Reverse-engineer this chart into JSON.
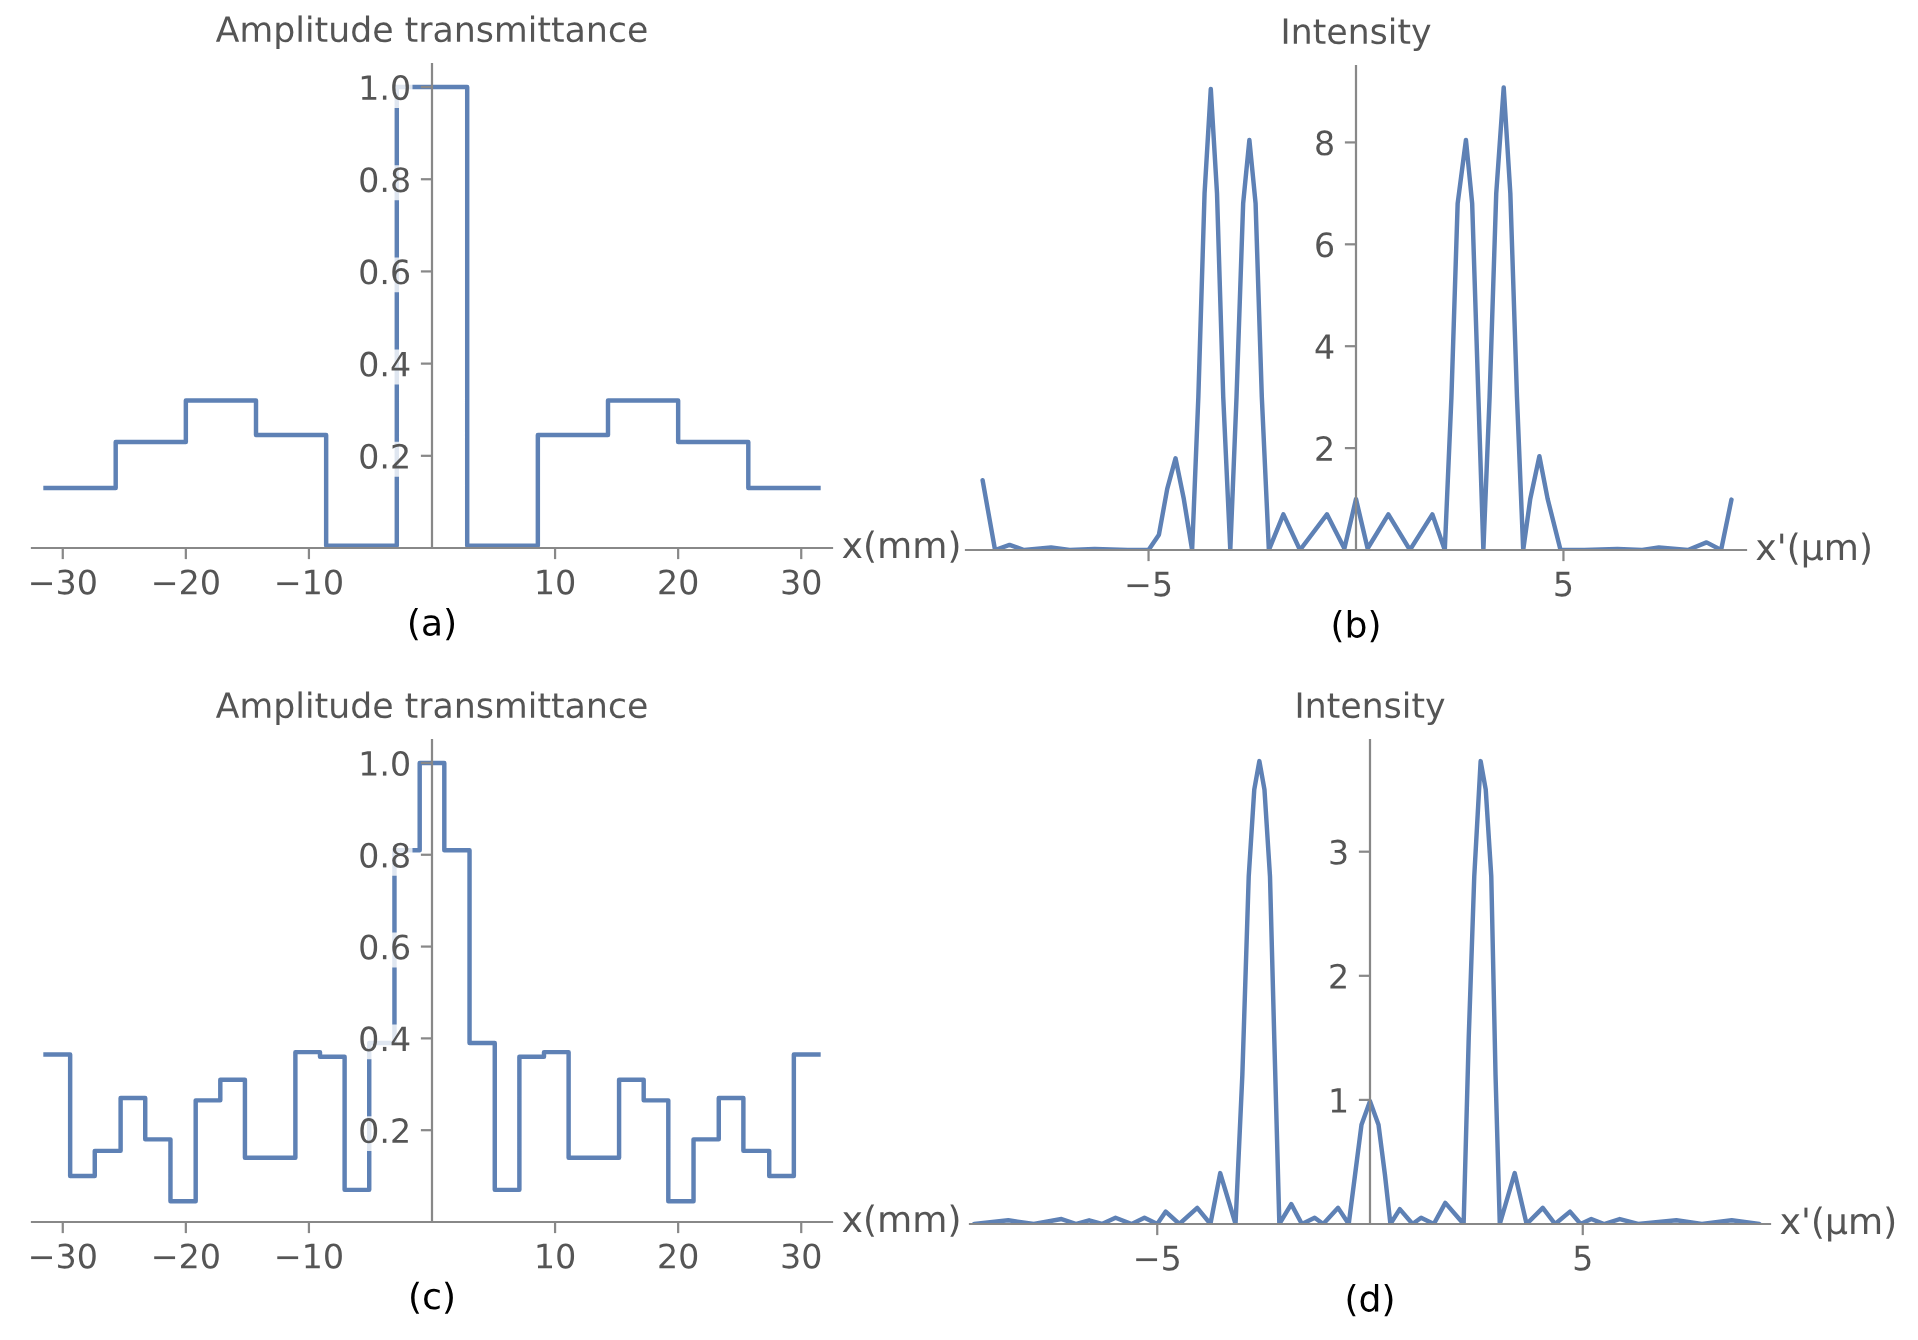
{
  "chart_data": [
    {
      "type": "step",
      "title": "Amplitude transmittance",
      "xlabel": "x(mm)",
      "annotations": [
        "(a)"
      ],
      "color": "#5e81b5",
      "x": [
        -31.4,
        -25.7,
        -20,
        -14.3,
        -8.6,
        -2.86,
        2.86,
        8.6,
        14.3,
        20,
        25.7,
        31.4
      ],
      "values": [
        0.13,
        0.23,
        0.32,
        0.245,
        0.005,
        1.0,
        0.005,
        0.245,
        0.32,
        0.23,
        0.13,
        0.13
      ],
      "xlim": [
        -32.5,
        32.5
      ],
      "ylim": [
        0,
        1.05
      ],
      "xticks": [
        {
          "value": -30,
          "label": "−30"
        },
        {
          "value": -20,
          "label": "−20"
        },
        {
          "value": -10,
          "label": "−10"
        },
        10,
        20,
        30
      ],
      "yticks": [
        0.2,
        0.4,
        0.6,
        0.8,
        {
          "value": 1,
          "label": "1.0"
        }
      ]
    },
    {
      "type": "line",
      "title": "Intensity",
      "xlabel": "x'(μm)",
      "annotations": [
        "(b)"
      ],
      "color": "#5e81b5",
      "x": [
        -9.0,
        -8.7,
        -8.35,
        -8.0,
        -7.35,
        -6.9,
        -6.3,
        -5.5,
        -5.0,
        -4.75,
        -4.55,
        -4.35,
        -4.15,
        -3.95,
        -3.8,
        -3.65,
        -3.5,
        -3.35,
        -3.2,
        -3.03,
        -2.88,
        -2.72,
        -2.57,
        -2.42,
        -2.27,
        -2.1,
        -1.75,
        -1.35,
        -0.7,
        -0.28,
        0.0,
        0.28,
        0.78,
        1.3,
        1.84,
        2.14,
        2.3,
        2.45,
        2.65,
        2.8,
        2.95,
        3.07,
        3.22,
        3.38,
        3.56,
        3.72,
        3.88,
        4.03,
        4.2,
        4.42,
        4.62,
        4.93,
        5.5,
        6.3,
        6.9,
        7.3,
        8.0,
        8.45,
        8.8,
        9.05
      ],
      "values": [
        1.37,
        0,
        0.1,
        0,
        0.05,
        0,
        0.02,
        0,
        0,
        0.3,
        1.2,
        1.8,
        1.0,
        0,
        3.0,
        7.0,
        9.05,
        7.0,
        3.0,
        0,
        3.0,
        6.8,
        8.05,
        6.8,
        3.0,
        0,
        0.7,
        0,
        0.7,
        0.03,
        1.0,
        0.03,
        0.7,
        0,
        0.7,
        0,
        3.0,
        6.8,
        8.05,
        6.8,
        3.0,
        0,
        3.0,
        7.0,
        9.08,
        7.0,
        3.0,
        0,
        1.0,
        1.84,
        1.0,
        0,
        0,
        0.02,
        0,
        0.05,
        0,
        0.15,
        0,
        0.99
      ],
      "xlim": [
        -9.4,
        9.4
      ],
      "ylim": [
        0,
        9.5
      ],
      "xticks": [
        {
          "value": -5,
          "label": "−5"
        },
        5
      ],
      "yticks": [
        2,
        4,
        6,
        8
      ]
    },
    {
      "type": "step",
      "title": "Amplitude transmittance",
      "xlabel": "x(mm)",
      "annotations": [
        "(c)"
      ],
      "color": "#5e81b5",
      "x": [
        -31.4,
        -29.4,
        -27.4,
        -25.3,
        -23.3,
        -21.25,
        -19.2,
        -17.2,
        -15.2,
        -13.15,
        -11.1,
        -9.1,
        -7.1,
        -5.1,
        -3.05,
        -1.0,
        1.0,
        3.05,
        5.1,
        7.1,
        9.1,
        11.1,
        13.15,
        15.2,
        17.2,
        19.2,
        21.25,
        23.3,
        25.3,
        27.4,
        29.4,
        31.4
      ],
      "values": [
        0.365,
        0.1,
        0.155,
        0.27,
        0.18,
        0.045,
        0.265,
        0.31,
        0.14,
        0.14,
        0.37,
        0.36,
        0.07,
        0.39,
        0.81,
        1.0,
        0.81,
        0.39,
        0.07,
        0.36,
        0.37,
        0.14,
        0.14,
        0.31,
        0.265,
        0.045,
        0.18,
        0.27,
        0.155,
        0.1,
        0.365,
        0.365
      ],
      "xlim": [
        -32.5,
        32.5
      ],
      "ylim": [
        0,
        1.05
      ],
      "xticks": [
        {
          "value": -30,
          "label": "−30"
        },
        {
          "value": -20,
          "label": "−20"
        },
        {
          "value": -10,
          "label": "−10"
        },
        10,
        20,
        30
      ],
      "yticks": [
        0.2,
        0.4,
        0.6,
        0.8,
        {
          "value": 1,
          "label": "1.0"
        }
      ]
    },
    {
      "type": "line",
      "title": "Intensity",
      "xlabel": "x'(μm)",
      "annotations": [
        "(d)"
      ],
      "color": "#5e81b5",
      "x": [
        -9.3,
        -8.5,
        -7.9,
        -7.25,
        -6.9,
        -6.6,
        -6.3,
        -5.98,
        -5.6,
        -5.3,
        -5.0,
        -4.8,
        -4.48,
        -4.06,
        -3.75,
        -3.52,
        -3.16,
        -3.0,
        -2.85,
        -2.72,
        -2.6,
        -2.48,
        -2.35,
        -2.25,
        -2.13,
        -1.85,
        -1.6,
        -1.3,
        -1.1,
        -0.75,
        -0.5,
        -0.35,
        -0.2,
        0.0,
        0.2,
        0.35,
        0.48,
        0.7,
        1.0,
        1.2,
        1.5,
        1.77,
        2.2,
        2.32,
        2.45,
        2.6,
        2.72,
        2.85,
        2.95,
        3.05,
        3.4,
        3.68,
        4.06,
        4.35,
        4.7,
        4.95,
        5.2,
        5.5,
        5.87,
        6.3,
        7.2,
        7.8,
        8.5,
        9.15
      ],
      "values": [
        0,
        0.03,
        0,
        0.04,
        0,
        0.03,
        0,
        0.05,
        0,
        0.05,
        0,
        0.1,
        0,
        0.13,
        0,
        0.41,
        0,
        1.2,
        2.8,
        3.5,
        3.73,
        3.5,
        2.8,
        1.5,
        0,
        0.16,
        0,
        0.05,
        0,
        0.13,
        0,
        0.4,
        0.8,
        0.99,
        0.8,
        0.4,
        0,
        0.12,
        0,
        0.05,
        0,
        0.17,
        0,
        1.5,
        2.8,
        3.73,
        3.5,
        2.8,
        1.2,
        0,
        0.41,
        0,
        0.13,
        0,
        0.1,
        0,
        0.04,
        0,
        0.04,
        0,
        0.03,
        0,
        0.03,
        0
      ],
      "xlim": [
        -9.4,
        9.4
      ],
      "ylim": [
        0,
        3.9
      ],
      "xticks": [
        {
          "value": -5,
          "label": "−5"
        },
        5
      ],
      "yticks": [
        1,
        2,
        3
      ]
    }
  ]
}
